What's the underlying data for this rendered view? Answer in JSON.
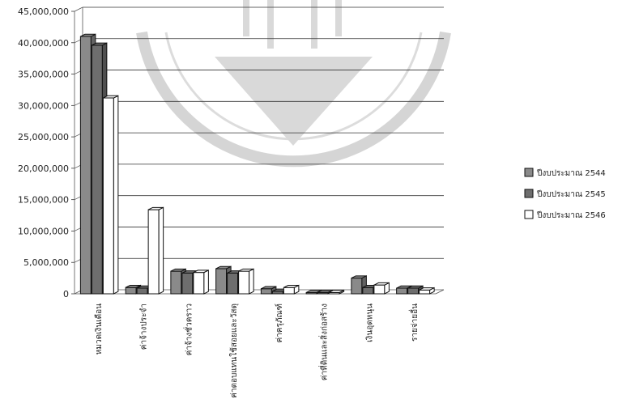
{
  "chart_data": {
    "type": "bar",
    "title": "",
    "xlabel": "",
    "ylabel": "",
    "ylim": [
      0,
      45000000
    ],
    "y_ticks": [
      "0",
      "5,000,000",
      "10,000,000",
      "15,000,000",
      "20,000,000",
      "25,000,000",
      "30,000,000",
      "35,000,000",
      "40,000,000",
      "45,000,000"
    ],
    "y_tick_values": [
      0,
      5000000,
      10000000,
      15000000,
      20000000,
      25000000,
      30000000,
      35000000,
      40000000,
      45000000
    ],
    "grid": true,
    "legend_position": "right",
    "categories": [
      "หมวดเงินเดือน",
      "ค่าจ้างประจำ",
      "ค่าจ้างชั่วคราว",
      "ค่าตอบแทนใช้สอยและวัสดุ",
      "ค่าครุภัณฑ์",
      "ค่าที่ดินและสิ่งก่อสร้าง",
      "เงินอุดหนุน",
      "รายจ่ายอื่น"
    ],
    "series": [
      {
        "name": "ปีงบประมาณ 2544",
        "color": "#8a8a8a",
        "values": [
          41000000,
          1000000,
          3600000,
          4000000,
          800000,
          200000,
          2500000,
          900000
        ]
      },
      {
        "name": "ปีงบประมาณ 2545",
        "color": "#6e6e6e",
        "values": [
          39600000,
          900000,
          3300000,
          3300000,
          400000,
          200000,
          1000000,
          900000
        ]
      },
      {
        "name": "ปีงบประมาณ 2546",
        "color": "#ffffff",
        "values": [
          31200000,
          13400000,
          3400000,
          3600000,
          1000000,
          200000,
          1400000,
          600000
        ]
      }
    ]
  }
}
